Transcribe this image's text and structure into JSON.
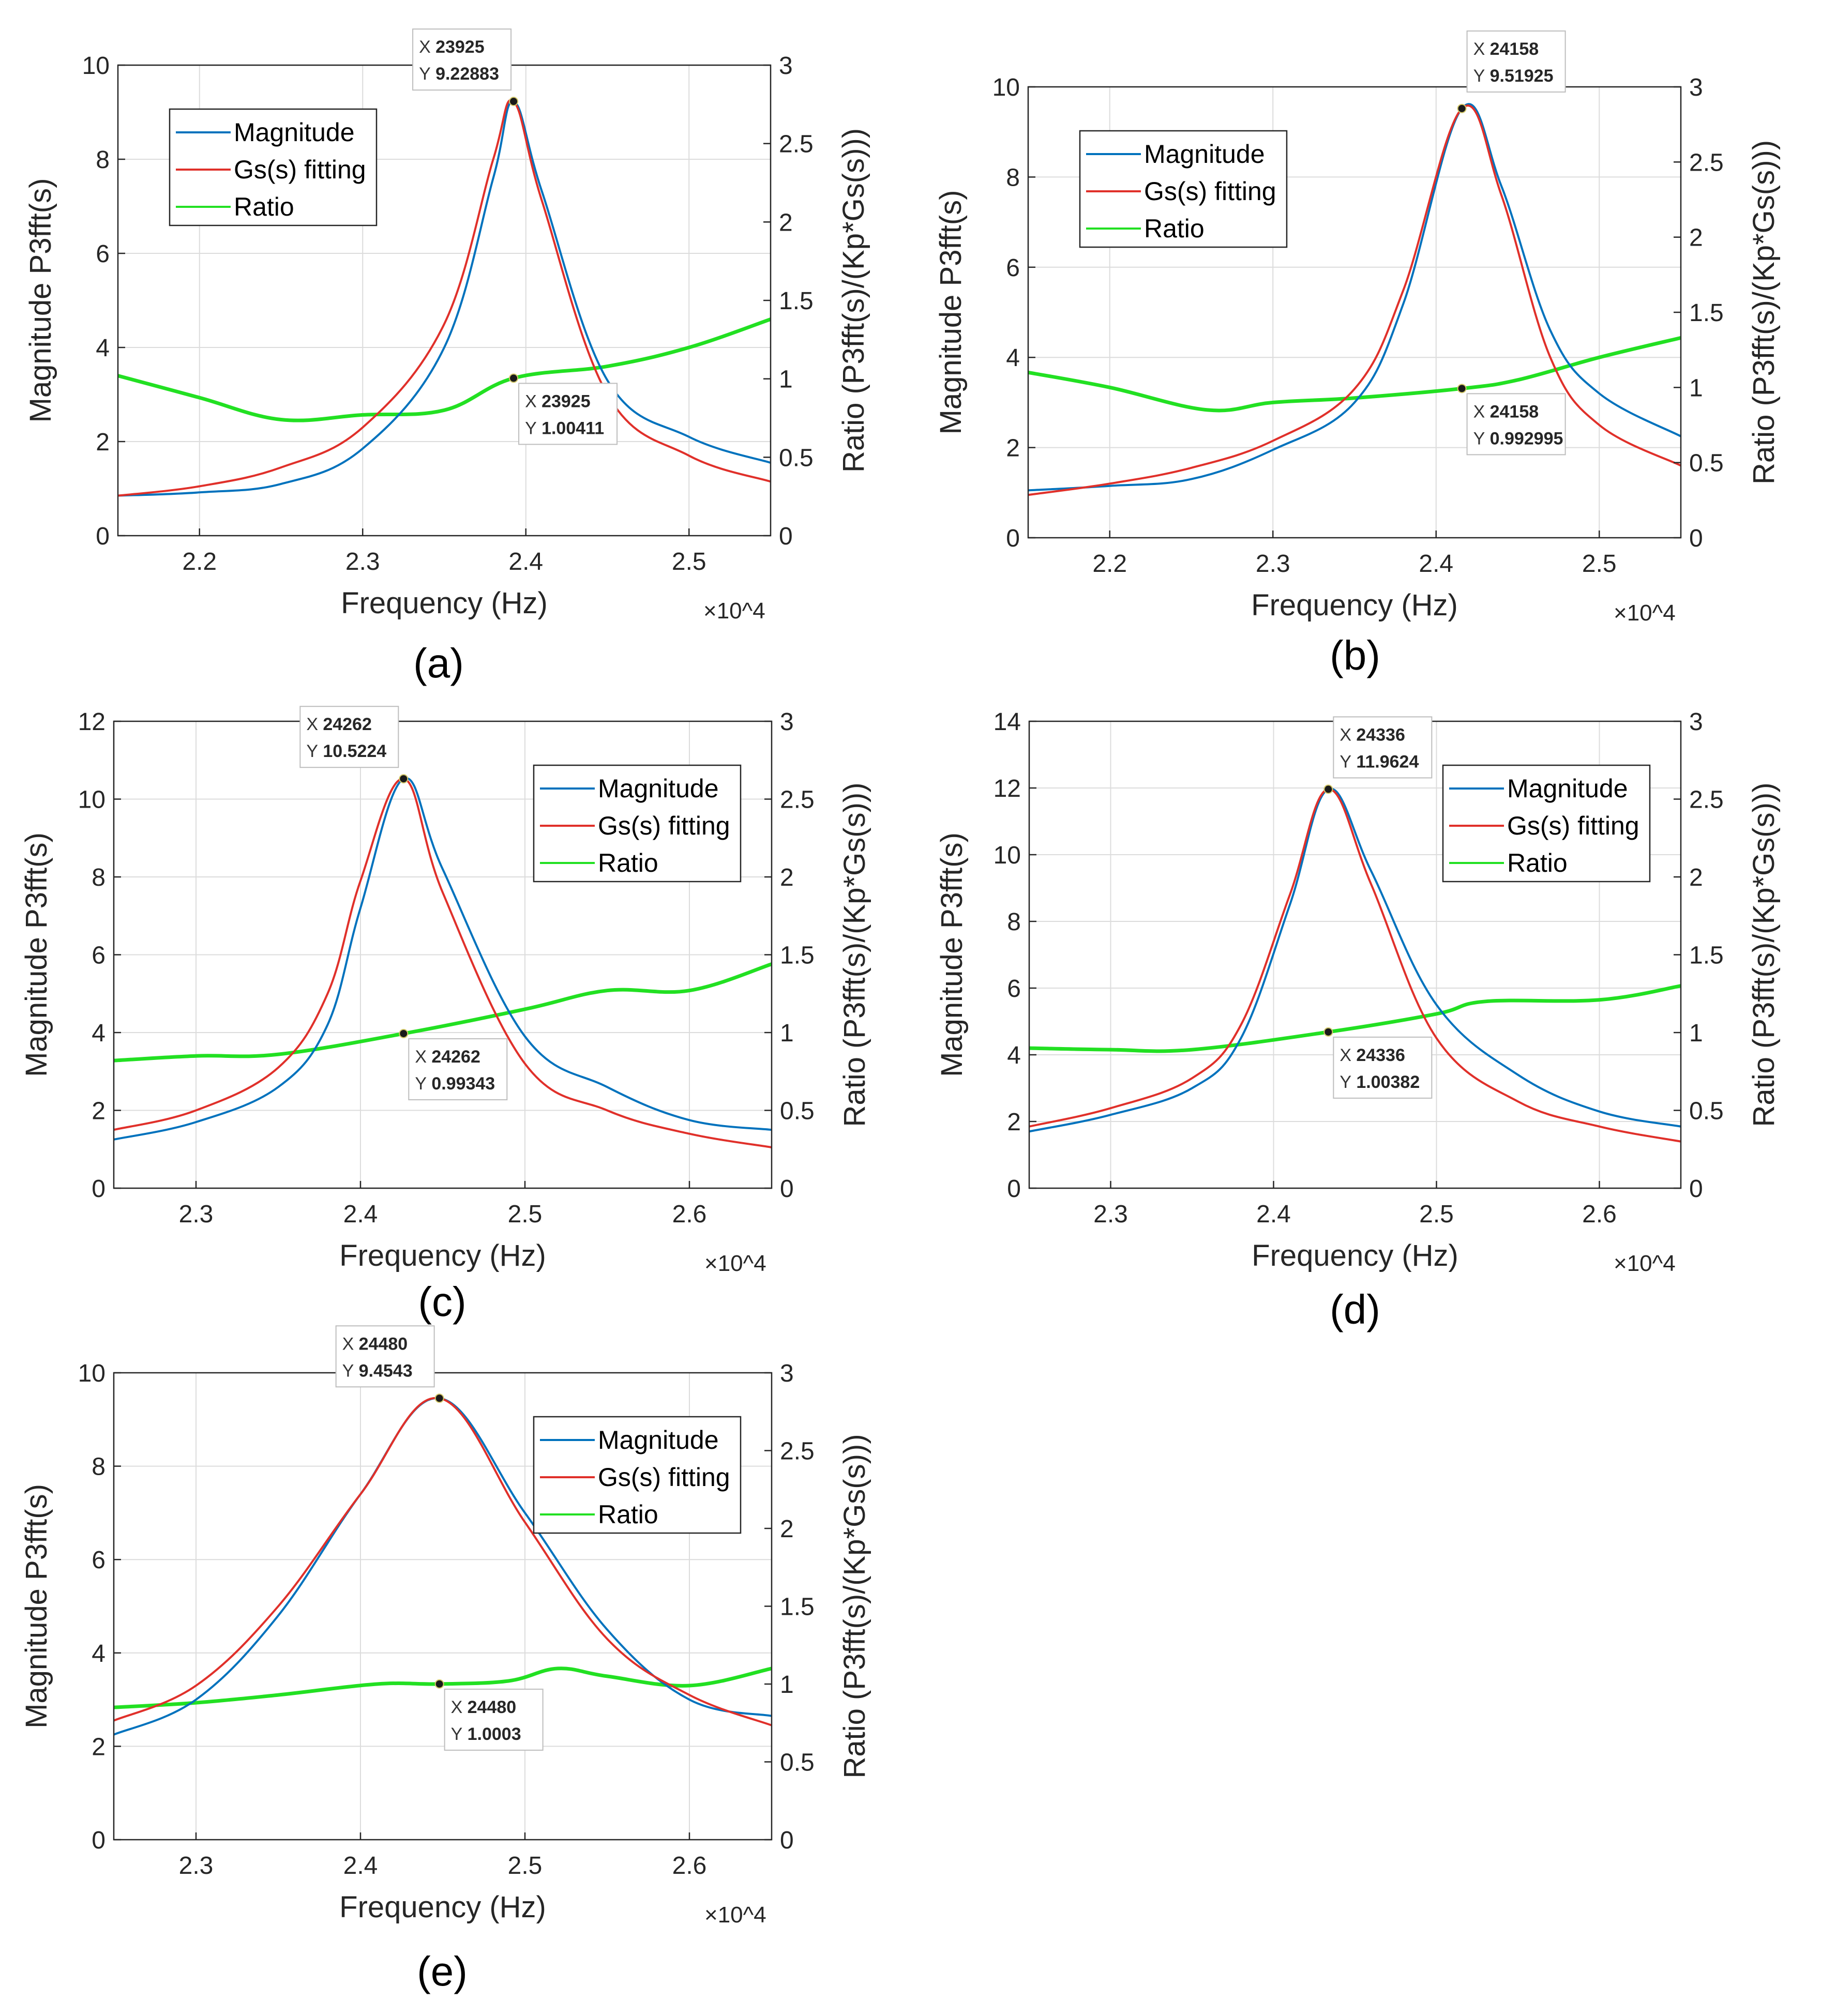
{
  "colors": {
    "magnitude": "#0072BD",
    "fitting": "#E0302A",
    "ratio": "#22E022",
    "grid": "#DCDCDC",
    "datatip_value": "#1E90D6"
  },
  "chart_data": [
    {
      "type": "line",
      "caption": "(a)",
      "xlabel": "Frequency (Hz)",
      "x_exponent": "×10^4",
      "ylabel_left": "Magnitude P3fft(s)",
      "ylabel_right": "Ratio (P3fft(s)/(Kp*Gs(s)))",
      "xlim": [
        2.15,
        2.55
      ],
      "xticks": [
        2.2,
        2.3,
        2.4,
        2.5
      ],
      "ylim_left": [
        0,
        10
      ],
      "yticks_left": [
        0,
        2,
        4,
        6,
        8,
        10
      ],
      "ylim_right": [
        0,
        3
      ],
      "yticks_right": [
        0,
        0.5,
        1,
        1.5,
        2,
        2.5,
        3
      ],
      "grid": true,
      "legend_position": "top-left",
      "series": [
        {
          "name": "Magnitude",
          "axis": "left",
          "x": [
            2.15,
            2.2,
            2.25,
            2.3,
            2.35,
            2.38,
            2.3925,
            2.41,
            2.45,
            2.5,
            2.55
          ],
          "y": [
            0.85,
            0.92,
            1.1,
            1.85,
            4.0,
            7.6,
            9.22883,
            7.3,
            3.3,
            2.1,
            1.55
          ]
        },
        {
          "name": "Gs(s) fitting",
          "axis": "left",
          "x": [
            2.15,
            2.2,
            2.25,
            2.3,
            2.35,
            2.38,
            2.3925,
            2.41,
            2.45,
            2.5,
            2.55
          ],
          "y": [
            0.85,
            1.05,
            1.45,
            2.3,
            4.5,
            8.0,
            9.22883,
            7.1,
            3.0,
            1.7,
            1.15
          ]
        },
        {
          "name": "Ratio",
          "axis": "right",
          "x": [
            2.15,
            2.2,
            2.25,
            2.3,
            2.35,
            2.3925,
            2.45,
            2.5,
            2.55
          ],
          "y": [
            1.02,
            0.88,
            0.74,
            0.77,
            0.8,
            1.00411,
            1.08,
            1.2,
            1.38
          ]
        }
      ],
      "datatips": [
        {
          "x_label": "X",
          "x_value": "23925",
          "y_label": "Y",
          "y_value": "9.22883",
          "point_x": 2.3925,
          "point_y": 9.22883,
          "axis": "left"
        },
        {
          "x_label": "X",
          "x_value": "23925",
          "y_label": "Y",
          "y_value": "1.00411",
          "point_x": 2.3925,
          "point_y": 1.00411,
          "axis": "right"
        }
      ]
    },
    {
      "type": "line",
      "caption": "(b)",
      "xlabel": "Frequency (Hz)",
      "x_exponent": "×10^4",
      "ylabel_left": "Magnitude P3fft(s)",
      "ylabel_right": "Ratio (P3fft(s)/(Kp*Gs(s)))",
      "xlim": [
        2.15,
        2.55
      ],
      "xticks": [
        2.2,
        2.3,
        2.4,
        2.5
      ],
      "ylim_left": [
        0,
        10
      ],
      "yticks_left": [
        0,
        2,
        4,
        6,
        8,
        10
      ],
      "ylim_right": [
        0,
        3
      ],
      "yticks_right": [
        0,
        0.5,
        1,
        1.5,
        2,
        2.5,
        3
      ],
      "grid": true,
      "legend_position": "top-left",
      "series": [
        {
          "name": "Magnitude",
          "axis": "left",
          "x": [
            2.15,
            2.2,
            2.25,
            2.3,
            2.35,
            2.38,
            2.4158,
            2.44,
            2.47,
            2.5,
            2.55
          ],
          "y": [
            1.05,
            1.15,
            1.3,
            1.95,
            3.0,
            5.2,
            9.51925,
            7.8,
            4.6,
            3.2,
            2.25
          ]
        },
        {
          "name": "Gs(s) fitting",
          "axis": "left",
          "x": [
            2.15,
            2.2,
            2.25,
            2.3,
            2.35,
            2.38,
            2.4158,
            2.44,
            2.47,
            2.5,
            2.55
          ],
          "y": [
            0.95,
            1.2,
            1.55,
            2.15,
            3.3,
            5.5,
            9.51925,
            7.6,
            4.0,
            2.5,
            1.6
          ]
        },
        {
          "name": "Ratio",
          "axis": "right",
          "x": [
            2.15,
            2.2,
            2.26,
            2.3,
            2.35,
            2.4158,
            2.45,
            2.5,
            2.55
          ],
          "y": [
            1.1,
            1.0,
            0.85,
            0.9,
            0.93,
            0.992995,
            1.05,
            1.2,
            1.33
          ]
        }
      ],
      "datatips": [
        {
          "x_label": "X",
          "x_value": "24158",
          "y_label": "Y",
          "y_value": "9.51925",
          "point_x": 2.4158,
          "point_y": 9.51925,
          "axis": "left"
        },
        {
          "x_label": "X",
          "x_value": "24158",
          "y_label": "Y",
          "y_value": "0.992995",
          "point_x": 2.4158,
          "point_y": 0.992995,
          "axis": "right"
        }
      ]
    },
    {
      "type": "line",
      "caption": "(c)",
      "xlabel": "Frequency (Hz)",
      "x_exponent": "×10^4",
      "ylabel_left": "Magnitude P3fft(s)",
      "ylabel_right": "Ratio (P3fft(s)/(Kp*Gs(s)))",
      "xlim": [
        2.25,
        2.65
      ],
      "xticks": [
        2.3,
        2.4,
        2.5,
        2.6
      ],
      "ylim_left": [
        0,
        12
      ],
      "yticks_left": [
        0,
        2,
        4,
        6,
        8,
        10,
        12
      ],
      "ylim_right": [
        0,
        3
      ],
      "yticks_right": [
        0,
        0.5,
        1,
        1.5,
        2,
        2.5,
        3
      ],
      "grid": true,
      "legend_position": "top-right",
      "series": [
        {
          "name": "Magnitude",
          "axis": "left",
          "x": [
            2.25,
            2.3,
            2.35,
            2.38,
            2.4,
            2.4262,
            2.45,
            2.5,
            2.55,
            2.6,
            2.65
          ],
          "y": [
            1.25,
            1.7,
            2.6,
            4.2,
            7.2,
            10.5224,
            8.2,
            3.9,
            2.6,
            1.75,
            1.5
          ]
        },
        {
          "name": "Gs(s) fitting",
          "axis": "left",
          "x": [
            2.25,
            2.3,
            2.35,
            2.38,
            2.4,
            2.4262,
            2.45,
            2.5,
            2.55,
            2.6,
            2.65
          ],
          "y": [
            1.5,
            2.0,
            3.1,
            5.0,
            7.9,
            10.5224,
            7.6,
            3.2,
            2.0,
            1.4,
            1.05
          ]
        },
        {
          "name": "Ratio",
          "axis": "right",
          "x": [
            2.25,
            2.3,
            2.35,
            2.4262,
            2.5,
            2.55,
            2.6,
            2.65
          ],
          "y": [
            0.82,
            0.85,
            0.86,
            0.99343,
            1.15,
            1.27,
            1.27,
            1.44
          ]
        }
      ],
      "datatips": [
        {
          "x_label": "X",
          "x_value": "24262",
          "y_label": "Y",
          "y_value": "10.5224",
          "point_x": 2.4262,
          "point_y": 10.5224,
          "axis": "left"
        },
        {
          "x_label": "X",
          "x_value": "24262",
          "y_label": "Y",
          "y_value": "0.99343",
          "point_x": 2.4262,
          "point_y": 0.99343,
          "axis": "right"
        }
      ]
    },
    {
      "type": "line",
      "caption": "(d)",
      "xlabel": "Frequency (Hz)",
      "x_exponent": "×10^4",
      "ylabel_left": "Magnitude P3fft(s)",
      "ylabel_right": "Ratio (P3fft(s)/(Kp*Gs(s)))",
      "xlim": [
        2.25,
        2.65
      ],
      "xticks": [
        2.3,
        2.4,
        2.5,
        2.6
      ],
      "ylim_left": [
        0,
        14
      ],
      "yticks_left": [
        0,
        2,
        4,
        6,
        8,
        10,
        12,
        14
      ],
      "ylim_right": [
        0,
        3
      ],
      "yticks_right": [
        0,
        0.5,
        1,
        1.5,
        2,
        2.5,
        3
      ],
      "grid": true,
      "legend_position": "top-right",
      "series": [
        {
          "name": "Magnitude",
          "axis": "left",
          "x": [
            2.25,
            2.3,
            2.35,
            2.38,
            2.41,
            2.4336,
            2.46,
            2.5,
            2.55,
            2.6,
            2.65
          ],
          "y": [
            1.7,
            2.2,
            3.0,
            4.5,
            8.5,
            11.9624,
            9.5,
            5.5,
            3.4,
            2.3,
            1.85
          ]
        },
        {
          "name": "Gs(s) fitting",
          "axis": "left",
          "x": [
            2.25,
            2.3,
            2.35,
            2.38,
            2.41,
            2.4336,
            2.46,
            2.5,
            2.55,
            2.6,
            2.65
          ],
          "y": [
            1.85,
            2.4,
            3.3,
            4.9,
            8.8,
            11.9624,
            9.1,
            4.5,
            2.6,
            1.85,
            1.4
          ]
        },
        {
          "name": "Ratio",
          "axis": "right",
          "x": [
            2.25,
            2.3,
            2.35,
            2.4336,
            2.5,
            2.53,
            2.6,
            2.65
          ],
          "y": [
            0.9,
            0.89,
            0.89,
            1.00382,
            1.12,
            1.2,
            1.21,
            1.3
          ]
        }
      ],
      "datatips": [
        {
          "x_label": "X",
          "x_value": "24336",
          "y_label": "Y",
          "y_value": "11.9624",
          "point_x": 2.4336,
          "point_y": 11.9624,
          "axis": "left"
        },
        {
          "x_label": "X",
          "x_value": "24336",
          "y_label": "Y",
          "y_value": "1.00382",
          "point_x": 2.4336,
          "point_y": 1.00382,
          "axis": "right"
        }
      ]
    },
    {
      "type": "line",
      "caption": "(e)",
      "xlabel": "Frequency (Hz)",
      "x_exponent": "×10^4",
      "ylabel_left": "Magnitude P3fft(s)",
      "ylabel_right": "Ratio (P3fft(s)/(Kp*Gs(s)))",
      "xlim": [
        2.25,
        2.65
      ],
      "xticks": [
        2.3,
        2.4,
        2.5,
        2.6
      ],
      "ylim_left": [
        0,
        10
      ],
      "yticks_left": [
        0,
        2,
        4,
        6,
        8,
        10
      ],
      "ylim_right": [
        0,
        3
      ],
      "yticks_right": [
        0,
        0.5,
        1,
        1.5,
        2,
        2.5,
        3
      ],
      "grid": true,
      "legend_position": "top-right",
      "series": [
        {
          "name": "Magnitude",
          "axis": "left",
          "x": [
            2.25,
            2.3,
            2.35,
            2.4,
            2.448,
            2.5,
            2.55,
            2.6,
            2.65
          ],
          "y": [
            2.25,
            3.0,
            4.8,
            7.4,
            9.4543,
            7.0,
            4.5,
            3.0,
            2.65
          ]
        },
        {
          "name": "Gs(s) fitting",
          "axis": "left",
          "x": [
            2.25,
            2.3,
            2.35,
            2.4,
            2.448,
            2.5,
            2.55,
            2.6,
            2.65
          ],
          "y": [
            2.55,
            3.3,
            5.0,
            7.4,
            9.4543,
            6.8,
            4.3,
            3.1,
            2.45
          ]
        },
        {
          "name": "Ratio",
          "axis": "right",
          "x": [
            2.25,
            2.3,
            2.35,
            2.41,
            2.448,
            2.49,
            2.52,
            2.55,
            2.6,
            2.65
          ],
          "y": [
            0.85,
            0.88,
            0.93,
            1.0,
            1.0003,
            1.02,
            1.1,
            1.05,
            0.99,
            1.1
          ]
        }
      ],
      "datatips": [
        {
          "x_label": "X",
          "x_value": "24480",
          "y_label": "Y",
          "y_value": "9.4543",
          "point_x": 2.448,
          "point_y": 9.4543,
          "axis": "left"
        },
        {
          "x_label": "X",
          "x_value": "24480",
          "y_label": "Y",
          "y_value": "1.0003",
          "point_x": 2.448,
          "point_y": 1.0003,
          "axis": "right"
        }
      ]
    }
  ]
}
